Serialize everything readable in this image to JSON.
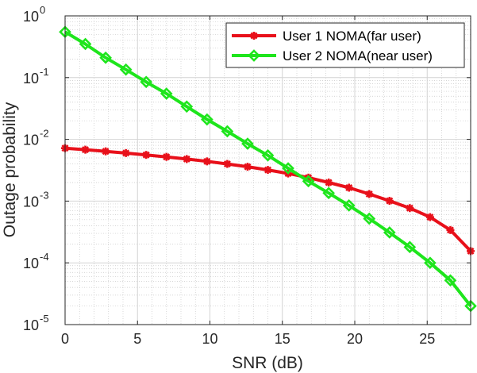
{
  "chart_data": {
    "type": "line",
    "xlabel": "SNR (dB)",
    "ylabel": "Outage probability",
    "xlim": [
      0,
      28
    ],
    "ylim": [
      1e-05,
      1
    ],
    "yscale": "log",
    "grid": true,
    "minor_grid": true,
    "legend_position": "top-right",
    "x_ticks": [
      0,
      5,
      10,
      15,
      20,
      25
    ],
    "y_ticks": [
      {
        "value": 1,
        "base": "10",
        "exp": "0"
      },
      {
        "value": 0.1,
        "base": "10",
        "exp": "-1"
      },
      {
        "value": 0.01,
        "base": "10",
        "exp": "-2"
      },
      {
        "value": 0.001,
        "base": "10",
        "exp": "-3"
      },
      {
        "value": 0.0001,
        "base": "10",
        "exp": "-4"
      },
      {
        "value": 1e-05,
        "base": "10",
        "exp": "-5"
      }
    ],
    "x": [
      0,
      1.4,
      2.8,
      4.2,
      5.6,
      7.0,
      8.4,
      9.8,
      11.2,
      12.6,
      14.0,
      15.4,
      16.8,
      18.2,
      19.6,
      21.0,
      22.4,
      23.8,
      25.2,
      26.6,
      28.0
    ],
    "series": [
      {
        "name": "User 1 NOMA(far user)",
        "color": "#e8101a",
        "marker": "asterisk",
        "values": [
          0.0072,
          0.0068,
          0.0064,
          0.006,
          0.0056,
          0.0052,
          0.0048,
          0.0044,
          0.004,
          0.0036,
          0.0032,
          0.0028,
          0.0024,
          0.002,
          0.00165,
          0.0013,
          0.00101,
          0.00077,
          0.00055,
          0.00034,
          0.000155
        ]
      },
      {
        "name": "User 2 NOMA(near user)",
        "color": "#1ee51c",
        "marker": "diamond",
        "values": [
          0.55,
          0.35,
          0.21,
          0.135,
          0.085,
          0.055,
          0.034,
          0.021,
          0.0135,
          0.0085,
          0.0055,
          0.0034,
          0.0021,
          0.00135,
          0.00085,
          0.00052,
          0.00031,
          0.00018,
          0.0001,
          5.2e-05,
          2e-05
        ]
      }
    ]
  }
}
